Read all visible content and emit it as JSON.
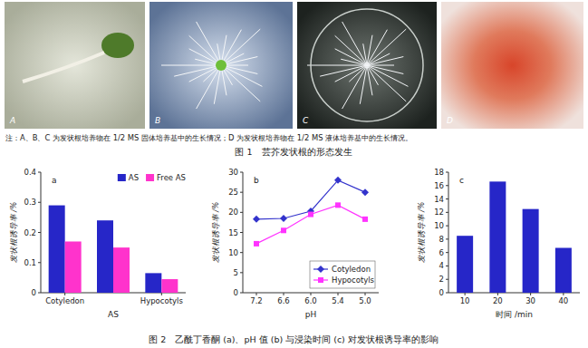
{
  "figure1": {
    "panels": [
      "A",
      "B",
      "C",
      "D"
    ],
    "note": "注：A、B、C 为发状根培养物在 1/2 MS 固体培养基中的生长情况；D 为发状根培养物在 1/2 MS 液体培养基中的生长情况。",
    "caption": "图 1　芸芥发状根的形态发生"
  },
  "figure2": {
    "caption": "图 2　乙酰丁香酮 (a)、pH 值 (b) 与浸染时间 (c) 对发状根诱导率的影响"
  },
  "chart_data": [
    {
      "type": "bar",
      "title": "a",
      "x_label": "AS",
      "y_label": "发状根诱导率 /%",
      "categories": [
        "Cotyledon",
        null,
        "Hypocotyls"
      ],
      "series": [
        {
          "name": "AS",
          "color": "#2626c8",
          "values": [
            0.29,
            0.24,
            0.065
          ]
        },
        {
          "name": "Free AS",
          "color": "#ff33cc",
          "values": [
            0.17,
            0.15,
            0.045
          ]
        }
      ],
      "ylim": [
        0,
        0.4
      ],
      "yticks": [
        0,
        0.1,
        0.2,
        0.3,
        0.4
      ],
      "grid": false,
      "legend": "upper right"
    },
    {
      "type": "line",
      "title": "b",
      "x_label": "pH",
      "y_label": "发状根诱导率 /%",
      "categories": [
        "7.2",
        "6.6",
        "6.0",
        "5.4",
        "5.0"
      ],
      "series": [
        {
          "name": "Cotyledon",
          "color": "#3333cc",
          "marker": "diamond",
          "values": [
            18.3,
            18.5,
            20.3,
            28,
            25
          ]
        },
        {
          "name": "Hypocotyls",
          "color": "#ff33ff",
          "marker": "square",
          "values": [
            12.2,
            15.5,
            19.5,
            21.8,
            18.3
          ]
        }
      ],
      "ylim": [
        0,
        30
      ],
      "yticks": [
        0,
        5,
        10,
        15,
        20,
        25,
        30
      ],
      "grid": false,
      "legend": "lower right"
    },
    {
      "type": "bar",
      "title": "c",
      "x_label": "时间 /min",
      "y_label": "发状根诱导率 /%",
      "categories": [
        10,
        20,
        30,
        40
      ],
      "values": [
        8.5,
        16.6,
        12.5,
        6.7
      ],
      "color": "#2626c8",
      "ylim": [
        0,
        18
      ],
      "yticks": [
        0,
        2,
        4,
        6,
        8,
        10,
        12,
        14,
        16,
        18
      ],
      "grid": false
    }
  ]
}
